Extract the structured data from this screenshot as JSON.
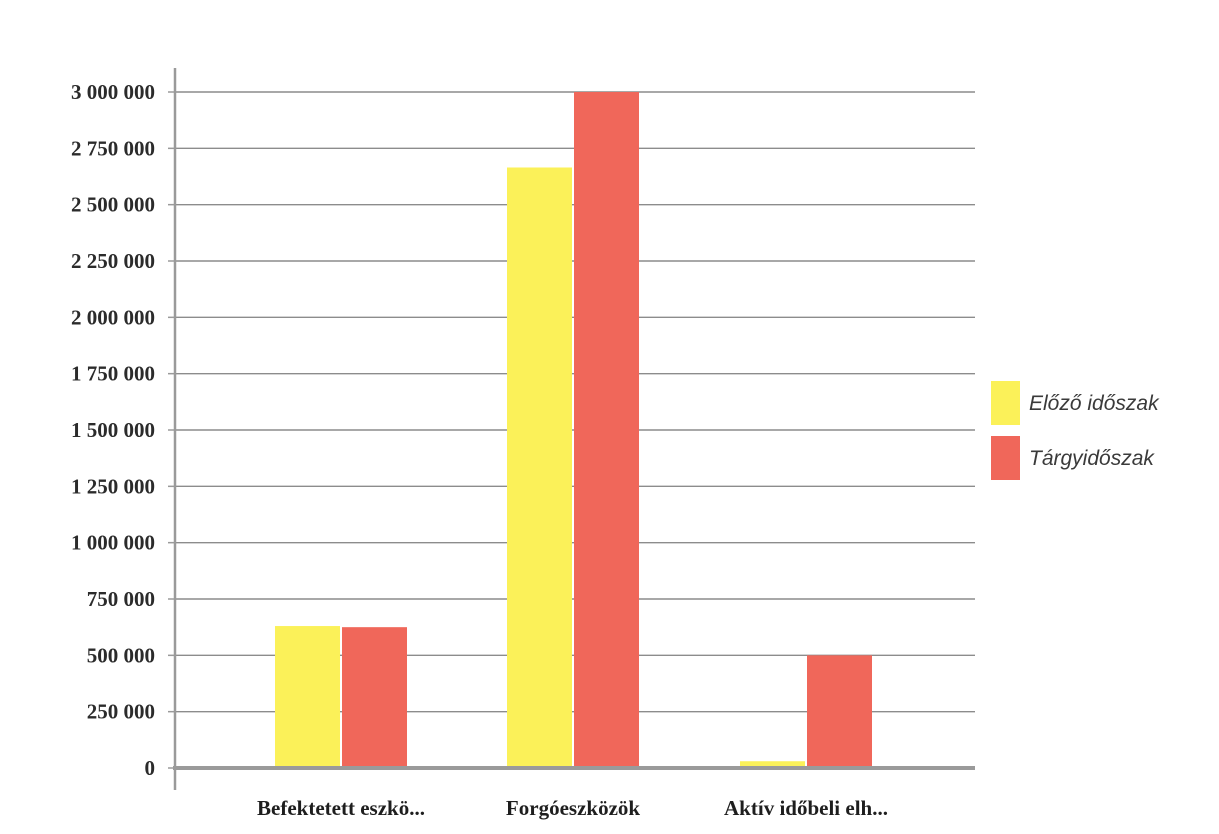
{
  "chart_data": {
    "type": "bar",
    "categories": [
      "Befektetett eszkö...",
      "Forgóeszközök",
      "Aktív időbeli elh..."
    ],
    "series": [
      {
        "name": "Előző időszak",
        "color": "#fbf159",
        "values": [
          630000,
          2665000,
          30000
        ]
      },
      {
        "name": "Tárgyidőszak",
        "color": "#f0675a",
        "values": [
          625000,
          3000000,
          500000
        ]
      }
    ],
    "y_ticks": [
      0,
      250000,
      500000,
      750000,
      1000000,
      1250000,
      1500000,
      1750000,
      2000000,
      2250000,
      2500000,
      2750000,
      3000000
    ],
    "y_tick_labels": [
      "0",
      "250 000",
      "500 000",
      "750 000",
      "1 000 000",
      "1 250 000",
      "1 500 000",
      "1 750 000",
      "2 000 000",
      "2 250 000",
      "2 500 000",
      "2 750 000",
      "3 000 000"
    ],
    "ylim": [
      0,
      3000000
    ],
    "grid": true,
    "legend_position": "right",
    "title": "",
    "xlabel": "",
    "ylabel": ""
  }
}
